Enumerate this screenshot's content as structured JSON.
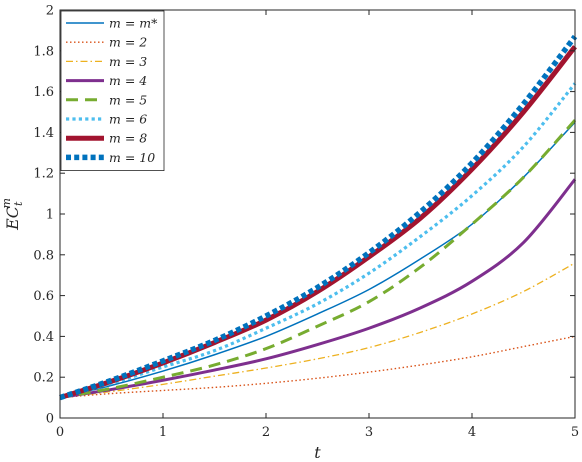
{
  "chart_data": {
    "type": "line",
    "xlabel": "t",
    "ylabel": "EC_t^m",
    "xlim": [
      0,
      5
    ],
    "ylim": [
      0,
      2
    ],
    "xticks": [
      "0",
      "1",
      "2",
      "3",
      "4",
      "5"
    ],
    "yticks": [
      "0",
      "0.2",
      "0.4",
      "0.6",
      "0.8",
      "1",
      "1.2",
      "1.4",
      "1.6",
      "1.8",
      "2"
    ],
    "grid": false,
    "legend_position": "top-left",
    "x": [
      0,
      0.5,
      1,
      1.5,
      2,
      2.5,
      3,
      3.5,
      4,
      4.5,
      5
    ],
    "series": [
      {
        "name": "m = m*",
        "color": "#0072BD",
        "style": "solid-thin",
        "values": [
          0.1,
          0.16,
          0.23,
          0.31,
          0.4,
          0.51,
          0.63,
          0.78,
          0.95,
          1.18,
          1.45
        ]
      },
      {
        "name": "m = 2",
        "color": "#D95319",
        "style": "dotted-thin",
        "values": [
          0.1,
          0.12,
          0.135,
          0.15,
          0.17,
          0.195,
          0.225,
          0.26,
          0.3,
          0.35,
          0.4
        ]
      },
      {
        "name": "m = 3",
        "color": "#EDB120",
        "style": "dashdot",
        "values": [
          0.1,
          0.13,
          0.165,
          0.205,
          0.245,
          0.29,
          0.345,
          0.42,
          0.51,
          0.62,
          0.76
        ]
      },
      {
        "name": "m = 4",
        "color": "#7E2F8E",
        "style": "solid-thick",
        "values": [
          0.1,
          0.14,
          0.185,
          0.235,
          0.29,
          0.36,
          0.44,
          0.54,
          0.67,
          0.86,
          1.17
        ]
      },
      {
        "name": "m = 5",
        "color": "#77AC30",
        "style": "dashed",
        "values": [
          0.1,
          0.145,
          0.2,
          0.26,
          0.34,
          0.45,
          0.57,
          0.74,
          0.95,
          1.18,
          1.46
        ]
      },
      {
        "name": "m = 6",
        "color": "#4DBEEE",
        "style": "dotted",
        "values": [
          0.1,
          0.17,
          0.25,
          0.33,
          0.44,
          0.56,
          0.71,
          0.89,
          1.09,
          1.33,
          1.64
        ]
      },
      {
        "name": "m = 8",
        "color": "#A2142F",
        "style": "solid-bold",
        "values": [
          0.1,
          0.18,
          0.27,
          0.37,
          0.48,
          0.62,
          0.79,
          0.98,
          1.22,
          1.5,
          1.82
        ]
      },
      {
        "name": "m = 10",
        "color": "#0072BD",
        "style": "dotted-bold",
        "values": [
          0.1,
          0.185,
          0.28,
          0.38,
          0.5,
          0.64,
          0.81,
          1.01,
          1.25,
          1.54,
          1.87
        ]
      }
    ]
  }
}
